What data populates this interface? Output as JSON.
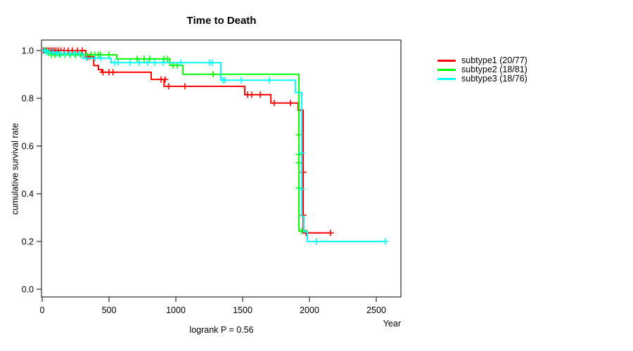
{
  "background_color": "#FFFFFF",
  "chart_data": {
    "type": "line",
    "subtype": "kaplan-meier-step-curves",
    "title": "Time to Death",
    "xlabel": "Year",
    "ylabel": "cumulative survival rate",
    "annotation": "logrank P = 0.56",
    "grid": false,
    "legend_position": "right-outside",
    "xlim": [
      0,
      2689
    ],
    "ylim": [
      0.0,
      1.0
    ],
    "xticks": [
      {
        "v": 0,
        "label": "0"
      },
      {
        "v": 500,
        "label": "500"
      },
      {
        "v": 1000,
        "label": "1000"
      },
      {
        "v": 1500,
        "label": "1500"
      },
      {
        "v": 2000,
        "label": "2000"
      },
      {
        "v": 2500,
        "label": "2500"
      }
    ],
    "yticks": [
      {
        "v": 0.0,
        "label": "0.0"
      },
      {
        "v": 0.2,
        "label": "0.2"
      },
      {
        "v": 0.4,
        "label": "0.4"
      },
      {
        "v": 0.6,
        "label": "0.6"
      },
      {
        "v": 0.8,
        "label": "0.8"
      },
      {
        "v": 1.0,
        "label": "1.0"
      }
    ],
    "series": [
      {
        "name": "subtype1",
        "label": "subtype1 (20/77)",
        "color": "#FF0000",
        "steps": [
          [
            0,
            1.0
          ],
          [
            326,
            0.974
          ],
          [
            386,
            0.937
          ],
          [
            421,
            0.92
          ],
          [
            447,
            0.909
          ],
          [
            816,
            0.879
          ],
          [
            912,
            0.85
          ],
          [
            1516,
            0.815
          ],
          [
            1711,
            0.78
          ],
          [
            1916,
            0.75
          ],
          [
            1953,
            0.236
          ],
          [
            2158,
            0.236
          ]
        ],
        "censor_marks": [
          [
            8,
            1
          ],
          [
            20,
            1
          ],
          [
            33,
            1
          ],
          [
            46,
            1
          ],
          [
            60,
            1
          ],
          [
            74,
            1
          ],
          [
            88,
            1
          ],
          [
            103,
            1
          ],
          [
            120,
            1
          ],
          [
            140,
            1
          ],
          [
            165,
            1
          ],
          [
            195,
            1
          ],
          [
            225,
            1
          ],
          [
            265,
            1
          ],
          [
            300,
            1
          ],
          [
            340,
            0.974
          ],
          [
            356,
            0.974
          ],
          [
            455,
            0.909
          ],
          [
            500,
            0.909
          ],
          [
            530,
            0.909
          ],
          [
            890,
            0.879
          ],
          [
            920,
            0.879
          ],
          [
            947,
            0.85
          ],
          [
            1068,
            0.85
          ],
          [
            1537,
            0.815
          ],
          [
            1568,
            0.815
          ],
          [
            1632,
            0.815
          ],
          [
            1737,
            0.78
          ],
          [
            1858,
            0.78
          ],
          [
            1953,
            0.49
          ],
          [
            1953,
            0.31
          ],
          [
            1975,
            0.236
          ],
          [
            2158,
            0.236
          ]
        ]
      },
      {
        "name": "subtype2",
        "label": "subtype2 (18/81)",
        "color": "#00FF00",
        "steps": [
          [
            0,
            1.0
          ],
          [
            30,
            0.99
          ],
          [
            80,
            0.982
          ],
          [
            558,
            0.965
          ],
          [
            956,
            0.938
          ],
          [
            1053,
            0.901
          ],
          [
            1921,
            0.244
          ],
          [
            1984,
            0.244
          ]
        ],
        "censor_marks": [
          [
            25,
            1
          ],
          [
            50,
            0.99
          ],
          [
            70,
            0.982
          ],
          [
            95,
            0.982
          ],
          [
            130,
            0.982
          ],
          [
            170,
            0.982
          ],
          [
            210,
            0.982
          ],
          [
            250,
            0.982
          ],
          [
            290,
            0.982
          ],
          [
            330,
            0.982
          ],
          [
            368,
            0.982
          ],
          [
            395,
            0.982
          ],
          [
            421,
            0.982
          ],
          [
            437,
            0.982
          ],
          [
            500,
            0.982
          ],
          [
            711,
            0.965
          ],
          [
            763,
            0.965
          ],
          [
            805,
            0.965
          ],
          [
            911,
            0.965
          ],
          [
            937,
            0.965
          ],
          [
            980,
            0.938
          ],
          [
            1010,
            0.938
          ],
          [
            1280,
            0.901
          ],
          [
            1921,
            0.647
          ],
          [
            1921,
            0.565
          ],
          [
            1921,
            0.53
          ],
          [
            1921,
            0.424
          ],
          [
            1940,
            0.244
          ]
        ]
      },
      {
        "name": "subtype3",
        "label": "subtype3 (18/76)",
        "color": "#00FFFF",
        "steps": [
          [
            0,
            1.0
          ],
          [
            40,
            0.993
          ],
          [
            120,
            0.987
          ],
          [
            305,
            0.968
          ],
          [
            516,
            0.949
          ],
          [
            1337,
            0.876
          ],
          [
            1895,
            0.824
          ],
          [
            1942,
            0.306
          ],
          [
            1958,
            0.24
          ],
          [
            1984,
            0.2
          ],
          [
            2568,
            0.2
          ]
        ],
        "censor_marks": [
          [
            15,
            1
          ],
          [
            35,
            0.993
          ],
          [
            55,
            0.993
          ],
          [
            80,
            0.993
          ],
          [
            110,
            0.987
          ],
          [
            140,
            0.987
          ],
          [
            170,
            0.987
          ],
          [
            205,
            0.987
          ],
          [
            240,
            0.987
          ],
          [
            275,
            0.987
          ],
          [
            330,
            0.968
          ],
          [
            395,
            0.968
          ],
          [
            440,
            0.968
          ],
          [
            542,
            0.949
          ],
          [
            568,
            0.949
          ],
          [
            658,
            0.949
          ],
          [
            726,
            0.949
          ],
          [
            789,
            0.949
          ],
          [
            842,
            0.949
          ],
          [
            905,
            0.949
          ],
          [
            1037,
            0.949
          ],
          [
            1253,
            0.949
          ],
          [
            1274,
            0.949
          ],
          [
            1353,
            0.876
          ],
          [
            1368,
            0.876
          ],
          [
            1490,
            0.876
          ],
          [
            1700,
            0.876
          ],
          [
            1942,
            0.57
          ],
          [
            1942,
            0.42
          ],
          [
            2053,
            0.2
          ],
          [
            2568,
            0.2
          ]
        ]
      }
    ]
  }
}
